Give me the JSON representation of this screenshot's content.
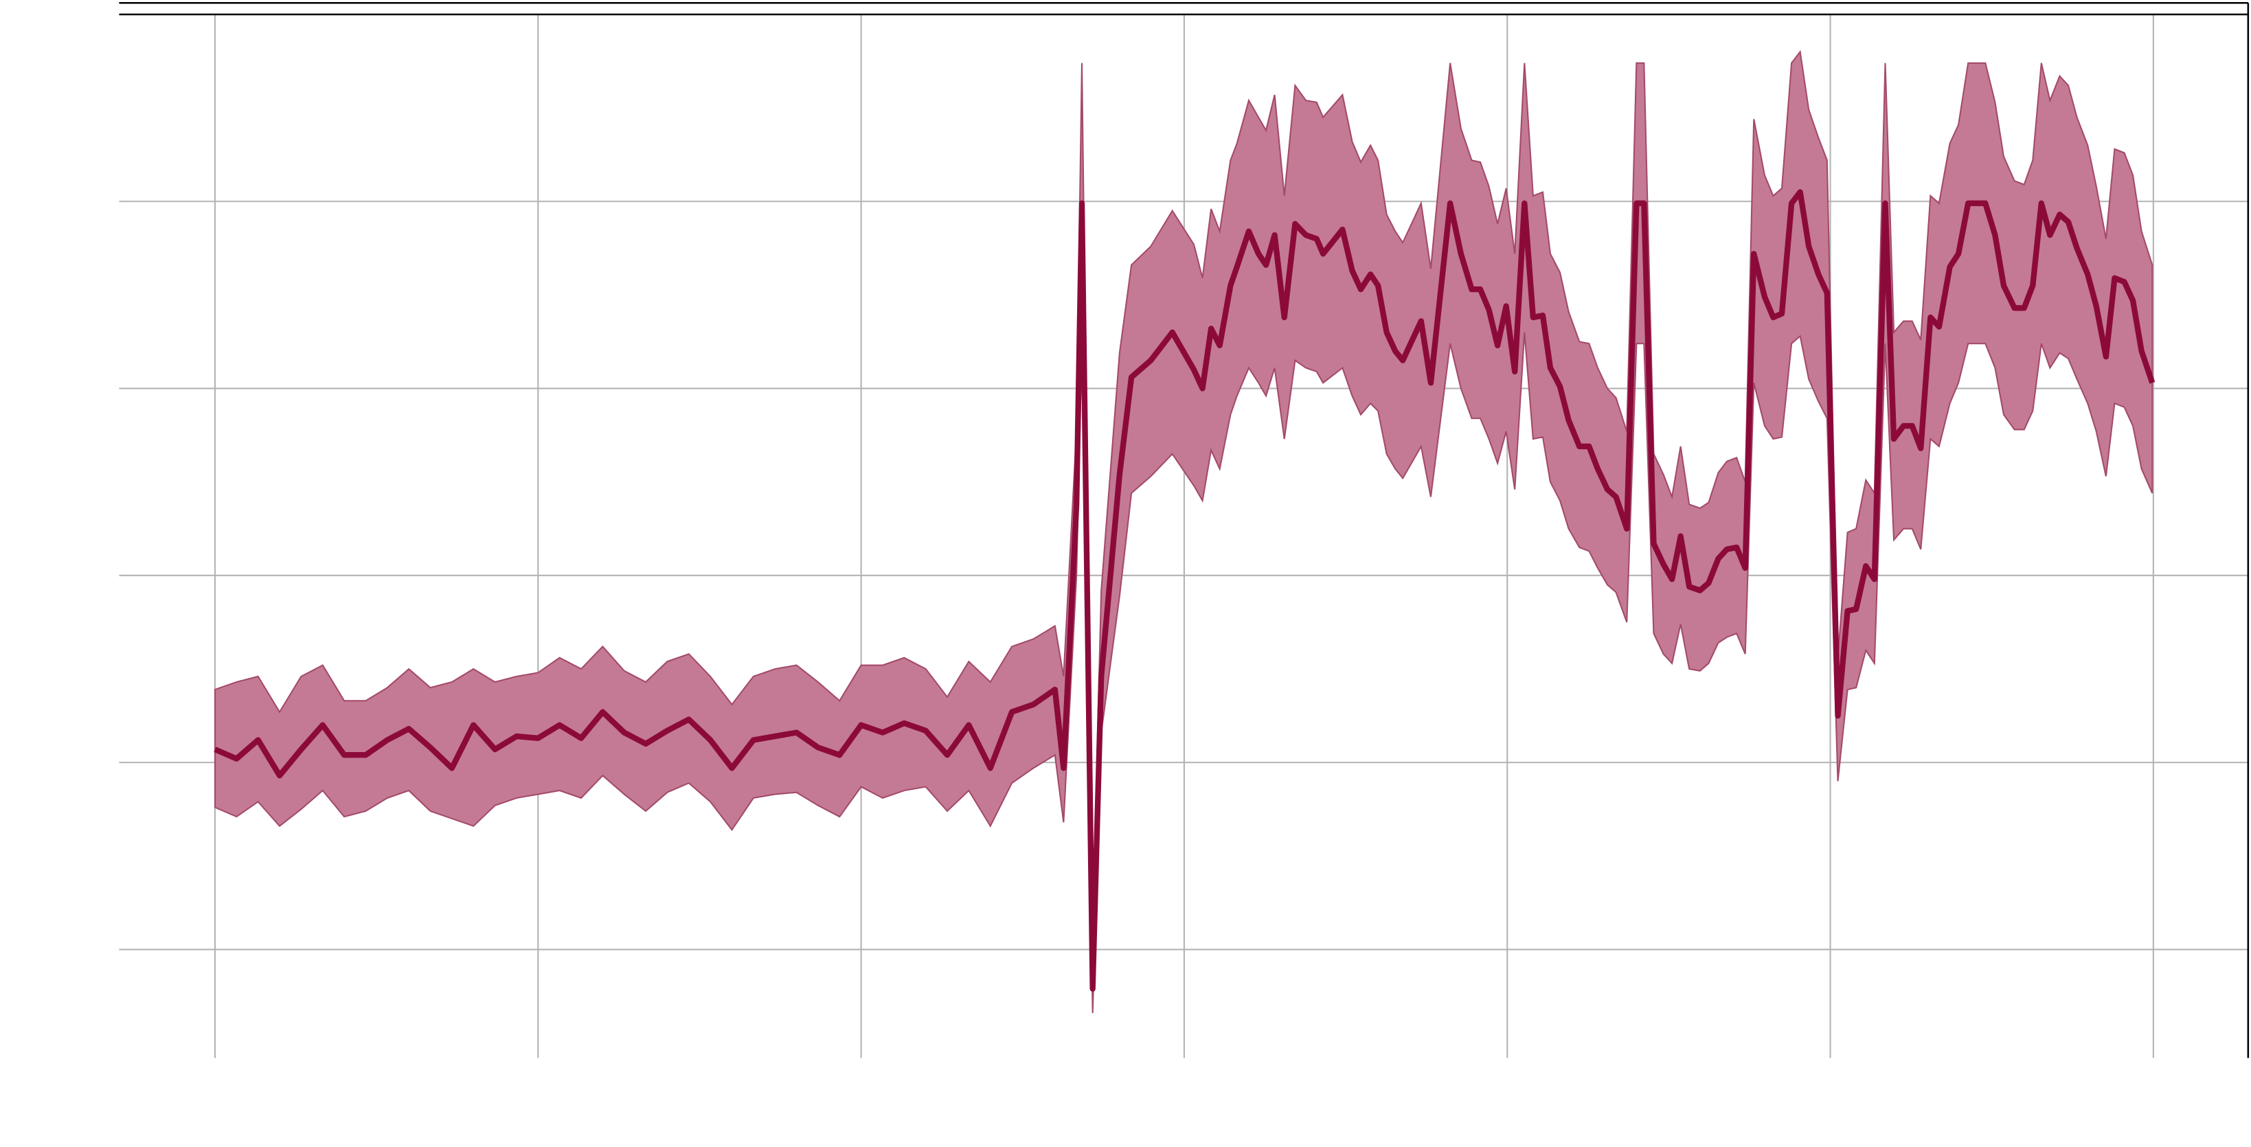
{
  "chart_data": {
    "type": "line",
    "color": "#8c0a3a",
    "band_color": "#c47a94",
    "band_edge_color": "#a44a6a",
    "grid": true,
    "xlim": [
      -8.9,
      188.8
    ],
    "ylim": [
      -0.58,
      5
    ],
    "xticks": [
      0,
      30,
      60,
      90,
      120,
      150,
      180
    ],
    "yticks": [
      0,
      1,
      2,
      3,
      4
    ],
    "x": [
      0,
      2,
      4,
      6,
      8,
      10,
      12,
      14,
      16,
      18,
      20,
      22,
      24,
      26,
      28,
      30,
      32,
      34,
      36,
      38,
      40,
      42,
      44,
      46,
      48,
      50,
      52,
      54,
      56,
      58,
      60,
      62,
      64,
      66,
      68,
      70,
      72,
      74,
      76,
      78,
      78.8,
      80,
      80.5,
      81.5,
      82.3,
      84,
      85.1,
      86.9,
      88.9,
      90.9,
      91.7,
      92.5,
      93.3,
      94.3,
      94.9,
      96,
      96.9,
      97.6,
      98.4,
      99.3,
      100.3,
      101.3,
      102.3,
      102.9,
      104.7,
      105.6,
      106.4,
      107.3,
      108,
      108.8,
      109.6,
      110.3,
      112,
      112.9,
      114.7,
      115.7,
      116.7,
      117.5,
      118.3,
      119.1,
      119.9,
      120.7,
      121.6,
      122.4,
      123.3,
      124,
      124.9,
      125.7,
      126.7,
      127.6,
      128.4,
      129.3,
      130.1,
      131.1,
      132,
      132.7,
      133.6,
      134.5,
      135.3,
      136.1,
      136.9,
      137.9,
      138.7,
      139.6,
      140.4,
      141.3,
      142.1,
      142.9,
      143.9,
      144.7,
      145.5,
      146.4,
      147.2,
      148,
      148.9,
      149.7,
      150.7,
      151.6,
      152.4,
      153.3,
      154.1,
      155.1,
      155.9,
      156.8,
      157.6,
      158.4,
      159.3,
      160.1,
      161.1,
      161.9,
      162.8,
      163.6,
      164.4,
      165.3,
      166.1,
      167.1,
      168,
      168.8,
      169.6,
      170.4,
      171.3,
      172.1,
      172.9,
      173.9,
      174.7,
      175.6,
      176.4,
      177.3,
      178.1,
      178.9,
      179.9
    ],
    "values": [
      1.07,
      1.02,
      1.12,
      0.93,
      1.07,
      1.2,
      1.04,
      1.04,
      1.12,
      1.18,
      1.08,
      0.97,
      1.2,
      1.07,
      1.14,
      1.13,
      1.2,
      1.13,
      1.27,
      1.16,
      1.1,
      1.17,
      1.23,
      1.12,
      0.97,
      1.12,
      1.14,
      1.16,
      1.08,
      1.04,
      1.2,
      1.16,
      1.21,
      1.17,
      1.04,
      1.2,
      0.97,
      1.27,
      1.31,
      1.39,
      0.97,
      2.38,
      3.99,
      -0.21,
      1.46,
      2.54,
      3.06,
      3.15,
      3.3,
      3.1,
      3.0,
      3.32,
      3.23,
      3.55,
      3.65,
      3.84,
      3.72,
      3.66,
      3.82,
      3.38,
      3.88,
      3.82,
      3.8,
      3.72,
      3.85,
      3.63,
      3.53,
      3.61,
      3.55,
      3.3,
      3.2,
      3.15,
      3.36,
      3.03,
      3.99,
      3.72,
      3.53,
      3.53,
      3.42,
      3.23,
      3.44,
      3.09,
      3.99,
      3.38,
      3.39,
      3.11,
      3.01,
      2.83,
      2.69,
      2.69,
      2.57,
      2.46,
      2.42,
      2.25,
      3.99,
      3.99,
      2.17,
      2.06,
      1.98,
      2.21,
      1.94,
      1.92,
      1.96,
      2.09,
      2.14,
      2.15,
      2.04,
      3.72,
      3.49,
      3.38,
      3.4,
      3.99,
      4.05,
      3.76,
      3.61,
      3.51,
      1.25,
      1.81,
      1.82,
      2.05,
      1.98,
      3.99,
      2.73,
      2.8,
      2.8,
      2.68,
      3.38,
      3.33,
      3.65,
      3.72,
      3.99,
      3.99,
      3.99,
      3.82,
      3.55,
      3.43,
      3.43,
      3.55,
      3.99,
      3.82,
      3.93,
      3.89,
      3.75,
      3.61,
      3.44,
      3.17,
      3.59,
      3.57,
      3.47,
      3.2,
      3.03
    ],
    "upper": [
      1.39,
      1.43,
      1.46,
      1.27,
      1.46,
      1.52,
      1.33,
      1.33,
      1.4,
      1.5,
      1.4,
      1.43,
      1.5,
      1.43,
      1.46,
      1.48,
      1.56,
      1.5,
      1.62,
      1.49,
      1.43,
      1.54,
      1.58,
      1.46,
      1.31,
      1.46,
      1.5,
      1.52,
      1.43,
      1.33,
      1.52,
      1.52,
      1.56,
      1.5,
      1.35,
      1.54,
      1.43,
      1.62,
      1.66,
      1.73,
      1.46,
      2.77,
      4.74,
      0.08,
      1.92,
      3.19,
      3.66,
      3.76,
      3.95,
      3.77,
      3.59,
      3.96,
      3.84,
      4.22,
      4.31,
      4.54,
      4.45,
      4.38,
      4.57,
      4.03,
      4.62,
      4.54,
      4.53,
      4.45,
      4.57,
      4.32,
      4.21,
      4.3,
      4.22,
      3.93,
      3.84,
      3.78,
      3.99,
      3.64,
      4.74,
      4.39,
      4.22,
      4.21,
      4.08,
      3.88,
      4.07,
      3.72,
      4.74,
      4.03,
      4.05,
      3.72,
      3.62,
      3.41,
      3.25,
      3.24,
      3.11,
      3.0,
      2.95,
      2.77,
      4.74,
      4.74,
      2.65,
      2.54,
      2.42,
      2.69,
      2.38,
      2.36,
      2.39,
      2.55,
      2.61,
      2.63,
      2.5,
      4.44,
      4.14,
      4.03,
      4.07,
      4.74,
      4.8,
      4.49,
      4.34,
      4.22,
      1.56,
      2.23,
      2.25,
      2.51,
      2.44,
      4.74,
      3.3,
      3.36,
      3.36,
      3.26,
      4.03,
      3.99,
      4.31,
      4.41,
      4.74,
      4.74,
      4.74,
      4.53,
      4.24,
      4.11,
      4.09,
      4.22,
      4.74,
      4.54,
      4.67,
      4.62,
      4.45,
      4.3,
      4.08,
      3.8,
      4.28,
      4.26,
      4.14,
      3.84,
      3.66
    ],
    "lower": [
      0.76,
      0.71,
      0.79,
      0.66,
      0.75,
      0.85,
      0.71,
      0.74,
      0.81,
      0.85,
      0.74,
      0.7,
      0.66,
      0.77,
      0.81,
      0.83,
      0.85,
      0.81,
      0.93,
      0.83,
      0.74,
      0.84,
      0.89,
      0.79,
      0.64,
      0.81,
      0.83,
      0.84,
      0.77,
      0.71,
      0.87,
      0.81,
      0.85,
      0.87,
      0.74,
      0.85,
      0.66,
      0.89,
      0.97,
      1.04,
      0.68,
      2.0,
      3.23,
      -0.34,
      1.16,
      1.89,
      2.44,
      2.53,
      2.65,
      2.48,
      2.4,
      2.67,
      2.57,
      2.86,
      2.96,
      3.11,
      3.03,
      2.96,
      3.11,
      2.73,
      3.15,
      3.11,
      3.09,
      3.03,
      3.11,
      2.96,
      2.86,
      2.92,
      2.88,
      2.65,
      2.57,
      2.52,
      2.69,
      2.42,
      3.24,
      3.0,
      2.84,
      2.84,
      2.73,
      2.6,
      2.77,
      2.46,
      3.3,
      2.73,
      2.74,
      2.5,
      2.4,
      2.25,
      2.15,
      2.13,
      2.04,
      1.95,
      1.91,
      1.75,
      3.24,
      3.24,
      1.69,
      1.58,
      1.53,
      1.74,
      1.5,
      1.49,
      1.53,
      1.64,
      1.67,
      1.69,
      1.58,
      3.03,
      2.8,
      2.73,
      2.74,
      3.24,
      3.28,
      3.05,
      2.93,
      2.84,
      0.9,
      1.39,
      1.4,
      1.6,
      1.53,
      3.24,
      2.19,
      2.25,
      2.25,
      2.14,
      2.73,
      2.69,
      2.92,
      3.03,
      3.24,
      3.24,
      3.24,
      3.11,
      2.86,
      2.78,
      2.78,
      2.88,
      3.24,
      3.11,
      3.19,
      3.16,
      3.05,
      2.92,
      2.77,
      2.53,
      2.92,
      2.9,
      2.8,
      2.57,
      2.44
    ]
  }
}
